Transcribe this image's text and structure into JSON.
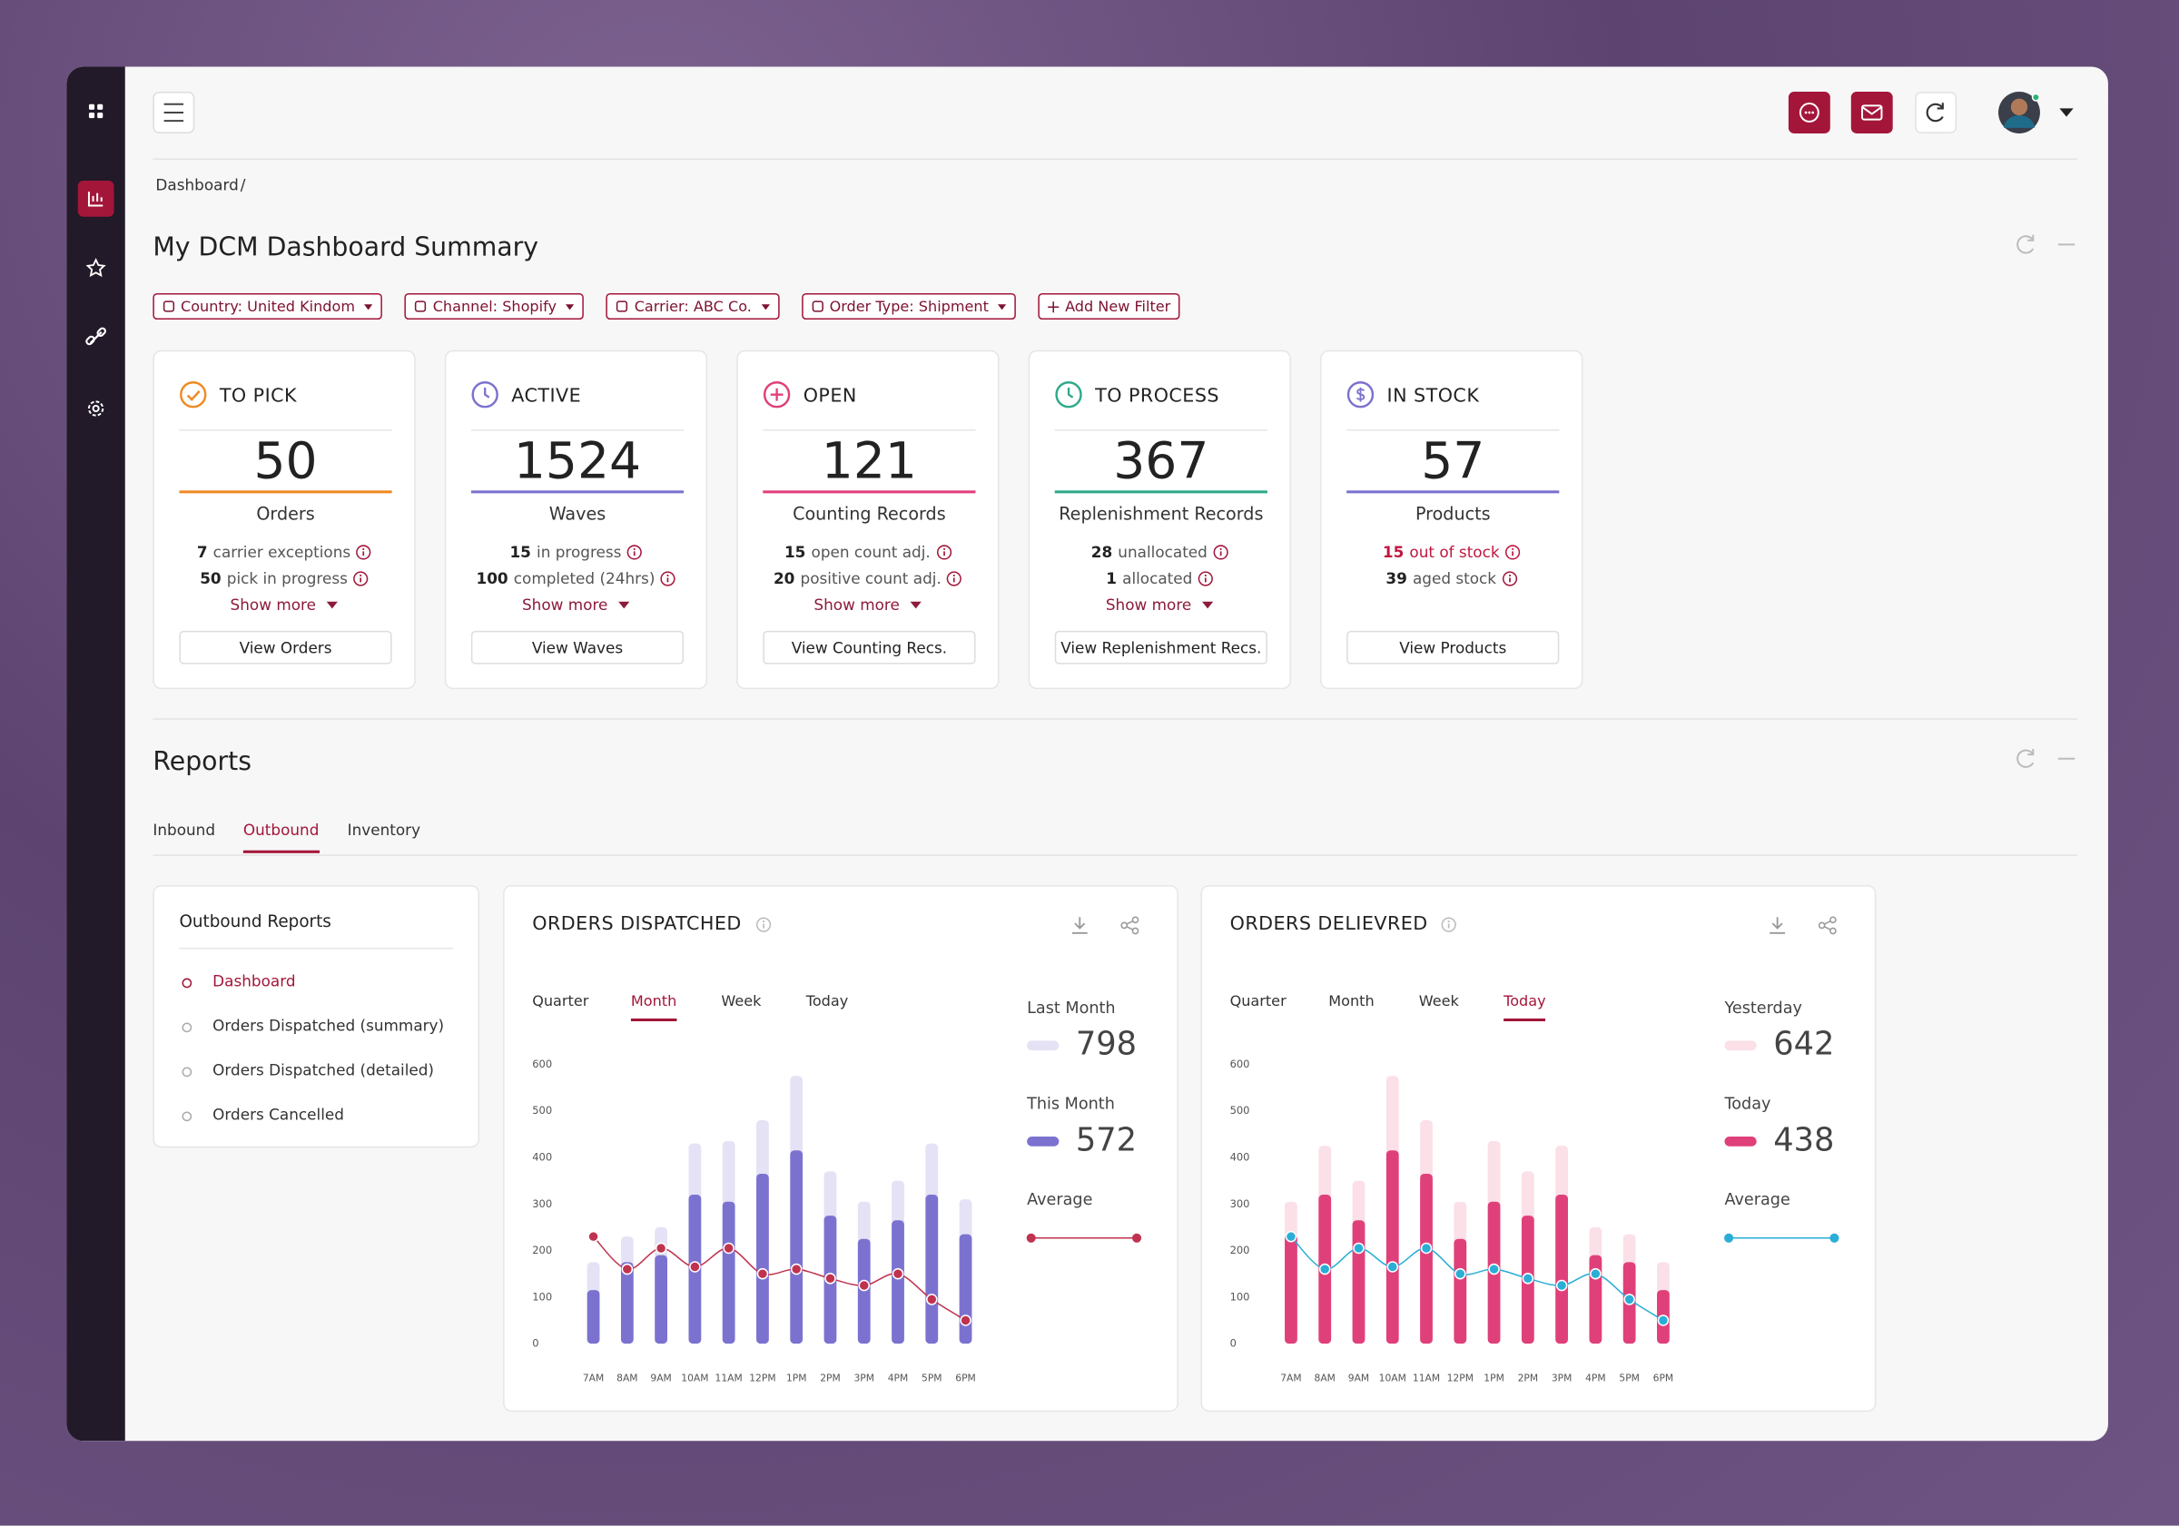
{
  "breadcrumb": {
    "items": [
      "Dashboard"
    ],
    "separator": "/"
  },
  "title": "My DCM Dashboard Summary",
  "filters": [
    "Country: United Kindom",
    "Channel: Shopify",
    "Carrier: ABC Co.",
    "Order Type: Shipment"
  ],
  "add_filter": "Add New Filter",
  "cards": [
    {
      "title": "TO PICK",
      "color": "#f08a24",
      "value": 50,
      "unit": "Orders",
      "details": [
        {
          "count": 7,
          "text": "carrier exceptions"
        },
        {
          "count": 50,
          "text": "pick in progress"
        }
      ],
      "show_more": "Show more",
      "button": "View Orders"
    },
    {
      "title": "ACTIVE",
      "color": "#7b72d0",
      "value": 1524,
      "unit": "Waves",
      "details": [
        {
          "count": 15,
          "text": "in progress"
        },
        {
          "count": 100,
          "text": "completed (24hrs)"
        }
      ],
      "show_more": "Show more",
      "button": "View Waves"
    },
    {
      "title": "OPEN",
      "color": "#e0407a",
      "value": 121,
      "unit": "Counting Records",
      "details": [
        {
          "count": 15,
          "text": "open count adj."
        },
        {
          "count": 20,
          "text": "positive count adj."
        }
      ],
      "show_more": "Show more",
      "button": "View Counting Recs."
    },
    {
      "title": "TO PROCESS",
      "color": "#2eaa8a",
      "value": 367,
      "unit": "Replenishment Records",
      "details": [
        {
          "count": 28,
          "text": "unallocated"
        },
        {
          "count": 1,
          "text": "allocated"
        }
      ],
      "show_more": "Show more",
      "button": "View Replenishment Recs."
    },
    {
      "title": "IN STOCK",
      "color": "#7b72d0",
      "value": 57,
      "unit": "Products",
      "details": [
        {
          "count": 15,
          "text": "out of stock",
          "color": "#c0163f"
        },
        {
          "count": 39,
          "text": "aged stock"
        }
      ],
      "button": "View Products"
    }
  ],
  "reports": {
    "title": "Reports",
    "tabs": [
      "Inbound",
      "Outbound",
      "Inventory"
    ],
    "active_tab": 1,
    "panel": {
      "title": "Outbound Reports",
      "items": [
        "Dashboard",
        "Orders Dispatched (summary)",
        "Orders Dispatched (detailed)",
        "Orders Cancelled"
      ],
      "active_item": 0
    }
  },
  "chart_data": [
    {
      "type": "bar",
      "title": "ORDERS DISPATCHED",
      "periods": [
        "Quarter",
        "Month",
        "Week",
        "Today"
      ],
      "active_period": 1,
      "categories": [
        "7AM",
        "8AM",
        "9AM",
        "10AM",
        "11AM",
        "12PM",
        "1PM",
        "2PM",
        "3PM",
        "4PM",
        "5PM",
        "6PM"
      ],
      "ylim": [
        0,
        600
      ],
      "yticks": [
        0,
        100,
        200,
        300,
        400,
        500,
        600
      ],
      "series": [
        {
          "name": "Last Month",
          "color": "#e4e2f4",
          "total": 798,
          "values": [
            175,
            230,
            250,
            430,
            435,
            480,
            575,
            370,
            305,
            350,
            430,
            310
          ]
        },
        {
          "name": "This Month",
          "color": "#7b72d0",
          "total": 572,
          "values": [
            115,
            175,
            190,
            320,
            305,
            365,
            415,
            275,
            225,
            265,
            320,
            235
          ]
        },
        {
          "name": "Average",
          "type": "line",
          "color": "#c0334f",
          "values": [
            230,
            160,
            205,
            165,
            205,
            150,
            160,
            140,
            125,
            150,
            95,
            50
          ]
        }
      ]
    },
    {
      "type": "bar",
      "title": "ORDERS DELIEVRED",
      "periods": [
        "Quarter",
        "Month",
        "Week",
        "Today"
      ],
      "active_period": 3,
      "categories": [
        "7AM",
        "8AM",
        "9AM",
        "10AM",
        "11AM",
        "12PM",
        "1PM",
        "2PM",
        "3PM",
        "4PM",
        "5PM",
        "6PM"
      ],
      "ylim": [
        0,
        600
      ],
      "yticks": [
        0,
        100,
        200,
        300,
        400,
        500,
        600
      ],
      "series": [
        {
          "name": "Yesterday",
          "color": "#fbe0e8",
          "total": 642,
          "values": [
            305,
            425,
            350,
            575,
            480,
            305,
            435,
            370,
            425,
            250,
            235,
            175
          ]
        },
        {
          "name": "Today",
          "color": "#e0407a",
          "total": 438,
          "values": [
            235,
            320,
            265,
            415,
            365,
            225,
            305,
            275,
            320,
            190,
            175,
            115
          ]
        },
        {
          "name": "Average",
          "type": "line",
          "color": "#2aaed6",
          "values": [
            230,
            160,
            205,
            165,
            205,
            150,
            160,
            140,
            125,
            150,
            95,
            50
          ]
        }
      ]
    }
  ]
}
